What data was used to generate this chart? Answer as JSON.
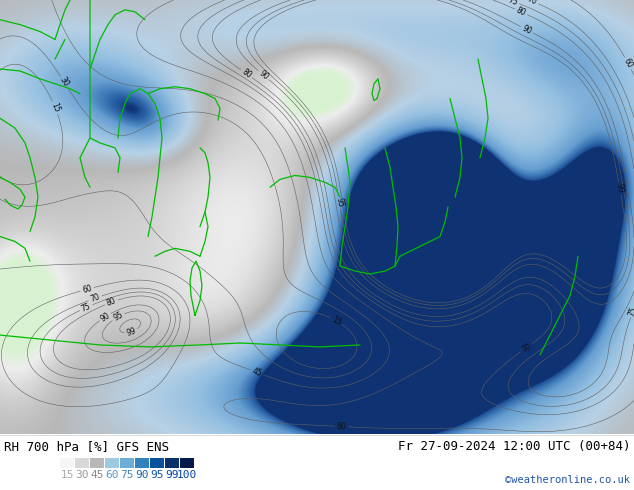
{
  "title_left": "RH 700 hPa [%] GFS ENS",
  "title_right": "Fr 27-09-2024 12:00 UTC (00+84)",
  "credit": "©weatheronline.co.uk",
  "legend_values": [
    15,
    30,
    45,
    60,
    75,
    90,
    95,
    99,
    100
  ],
  "leg_colors": [
    "#f5f5f5",
    "#d8d8d8",
    "#b8b8b8",
    "#9ecae1",
    "#6baed6",
    "#3182bd",
    "#08519c",
    "#08306b",
    "#03194a"
  ],
  "leg_text_colors": [
    "#aaaaaa",
    "#999999",
    "#888888",
    "#5599cc",
    "#4488bb",
    "#2266aa",
    "#1155aa",
    "#0044aa",
    "#0044aa"
  ],
  "figsize": [
    6.34,
    4.9
  ],
  "dpi": 100,
  "label_fontsize": 8,
  "title_fontsize": 9,
  "credit_fontsize": 7.5
}
